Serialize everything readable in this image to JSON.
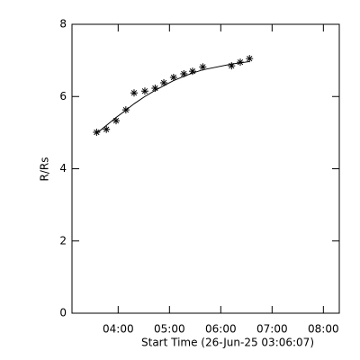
{
  "chart_data": {
    "type": "scatter",
    "xlabel": "Start Time (26-Jun-25 03:06:07)",
    "ylabel": "R/Rs",
    "x": [
      3.58,
      3.77,
      3.96,
      4.15,
      4.31,
      4.52,
      4.72,
      4.89,
      5.08,
      5.28,
      5.45,
      5.65,
      6.21,
      6.38,
      6.56
    ],
    "series": [
      {
        "values": [
          5.01,
          5.09,
          5.33,
          5.63,
          6.1,
          6.15,
          6.23,
          6.38,
          6.53,
          6.63,
          6.7,
          6.82,
          6.85,
          6.95,
          7.05
        ],
        "color": "#000000",
        "marker": "asterisk"
      }
    ],
    "fit": {
      "values": [
        4.98,
        5.2,
        5.42,
        5.62,
        5.8,
        6.0,
        6.17,
        6.3,
        6.44,
        6.56,
        6.65,
        6.74,
        6.9,
        6.93,
        6.97
      ],
      "color": "#000000"
    },
    "xlim": [
      3.1,
      8.31
    ],
    "ylim": [
      0,
      8
    ],
    "xticks": [
      {
        "value": 4,
        "label": "04:00"
      },
      {
        "value": 5,
        "label": "05:00"
      },
      {
        "value": 6,
        "label": "06:00"
      },
      {
        "value": 7,
        "label": "07:00"
      },
      {
        "value": 8,
        "label": "08:00"
      }
    ],
    "yticks": [
      0,
      2,
      4,
      6,
      8
    ]
  }
}
